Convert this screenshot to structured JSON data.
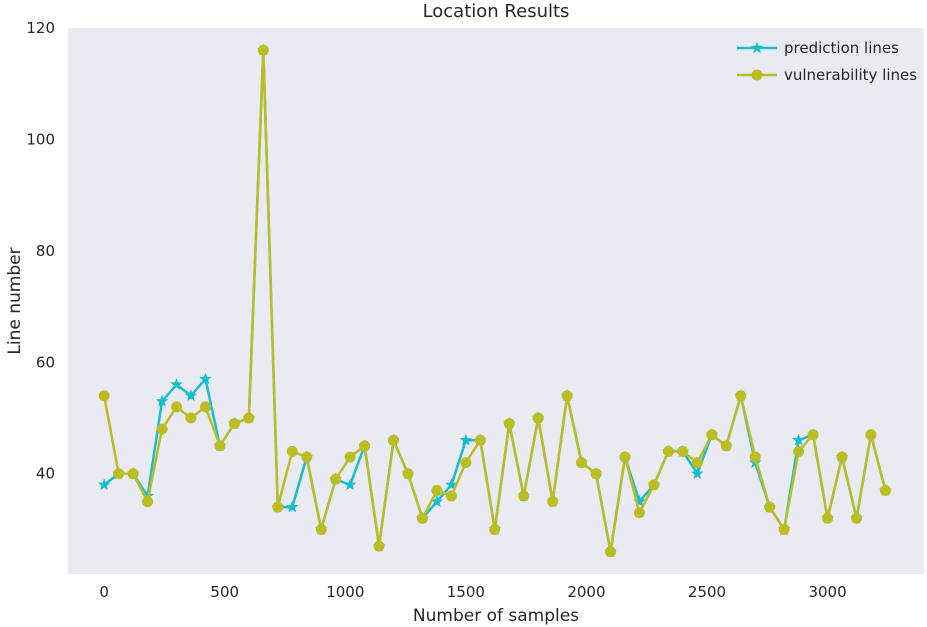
{
  "chart_data": {
    "type": "line",
    "title": "Location Results",
    "xlabel": "Number of samples",
    "ylabel": "Line number",
    "xlim": [
      -150,
      3400
    ],
    "ylim": [
      22,
      120
    ],
    "xticks": [
      0,
      500,
      1000,
      1500,
      2000,
      2500,
      3000
    ],
    "yticks": [
      40,
      60,
      80,
      100,
      120
    ],
    "grid": false,
    "legend_position": "top-right",
    "background": "#EAEAF2",
    "x": [
      0,
      60,
      120,
      180,
      240,
      300,
      360,
      420,
      480,
      540,
      600,
      660,
      720,
      780,
      840,
      900,
      960,
      1020,
      1080,
      1140,
      1200,
      1260,
      1320,
      1380,
      1440,
      1500,
      1560,
      1620,
      1680,
      1740,
      1800,
      1860,
      1920,
      1980,
      2040,
      2100,
      2160,
      2220,
      2280,
      2340,
      2400,
      2460,
      2520,
      2580,
      2640,
      2700,
      2760,
      2820,
      2880,
      2940,
      3000,
      3060,
      3120,
      3180,
      3240
    ],
    "series": [
      {
        "name": "prediction lines",
        "color": "#17BECF",
        "marker": "star",
        "values": [
          38,
          40,
          40,
          36,
          53,
          56,
          54,
          57,
          45,
          49,
          50,
          116,
          34,
          34,
          43,
          30,
          39,
          38,
          45,
          27,
          46,
          40,
          32,
          35,
          38,
          46,
          46,
          30,
          49,
          36,
          50,
          35,
          54,
          42,
          40,
          26,
          43,
          35,
          38,
          44,
          44,
          40,
          47,
          45,
          54,
          42,
          34,
          30,
          46,
          47,
          32,
          43,
          32,
          47,
          37
        ]
      },
      {
        "name": "vulnerability lines",
        "color": "#BCBD22",
        "marker": "circle",
        "values": [
          54,
          40,
          40,
          35,
          48,
          52,
          50,
          52,
          45,
          49,
          50,
          116,
          34,
          44,
          43,
          30,
          39,
          43,
          45,
          27,
          46,
          40,
          32,
          37,
          36,
          42,
          46,
          30,
          49,
          36,
          50,
          35,
          54,
          42,
          40,
          26,
          43,
          33,
          38,
          44,
          44,
          42,
          47,
          45,
          54,
          43,
          34,
          30,
          44,
          47,
          32,
          43,
          32,
          47,
          37
        ]
      }
    ]
  }
}
